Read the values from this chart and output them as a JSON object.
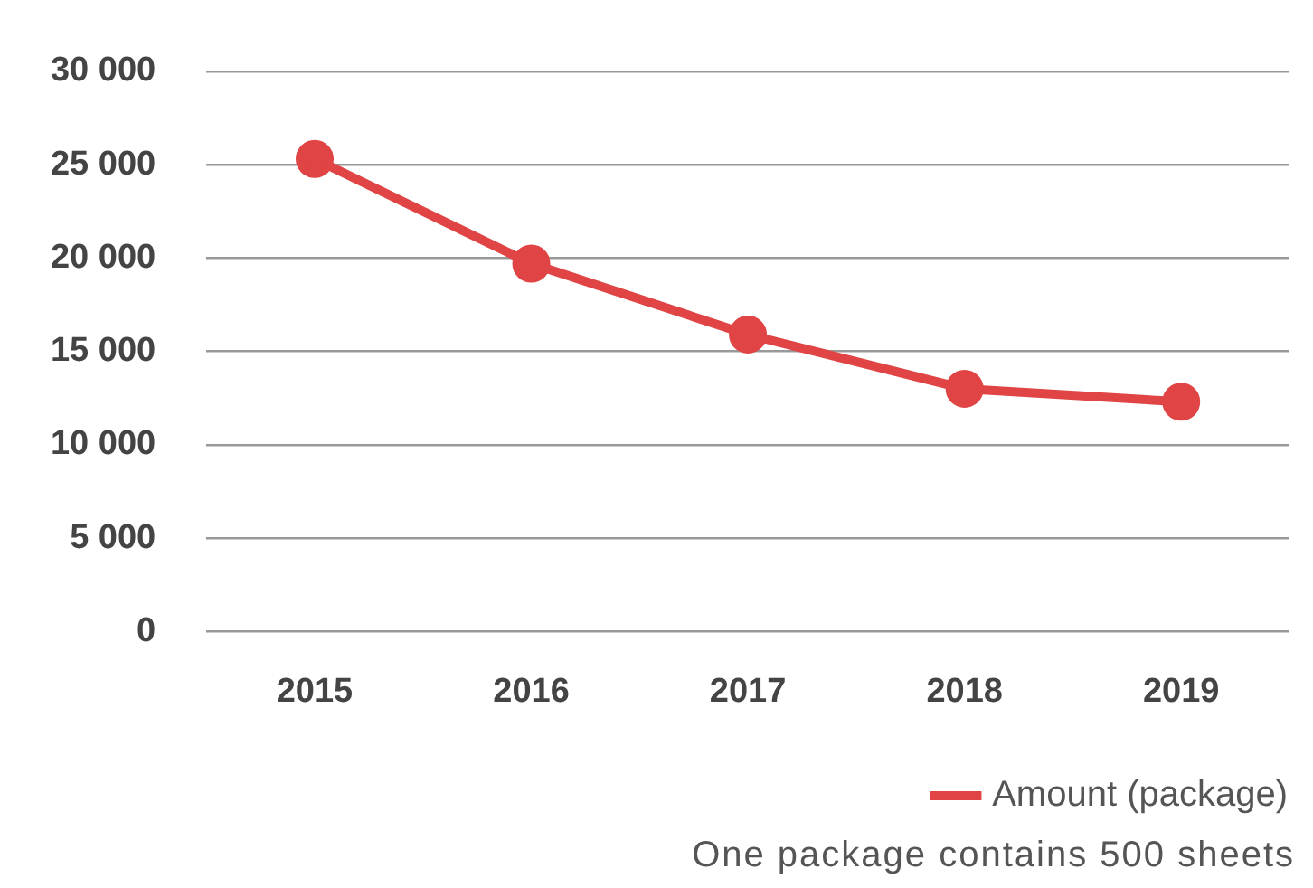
{
  "chart_data": {
    "type": "line",
    "categories": [
      "2015",
      "2016",
      "2017",
      "2018",
      "2019"
    ],
    "series": [
      {
        "name": "Amount (package)",
        "color": "#e04444",
        "values": [
          25300,
          19700,
          15900,
          13000,
          12300
        ]
      }
    ],
    "ylim": [
      0,
      30000
    ],
    "yticks": [
      {
        "value": 0,
        "label": "0"
      },
      {
        "value": 5000,
        "label": "5 000"
      },
      {
        "value": 10000,
        "label": "10 000"
      },
      {
        "value": 15000,
        "label": "15 000"
      },
      {
        "value": 20000,
        "label": "20 000"
      },
      {
        "value": 25000,
        "label": "25 000"
      },
      {
        "value": 30000,
        "label": "30 000"
      }
    ],
    "grid": "y",
    "legend": "bottom right",
    "marker": "circle",
    "line_style": "solid",
    "annotations": [
      "One package contains 500 sheets"
    ]
  }
}
